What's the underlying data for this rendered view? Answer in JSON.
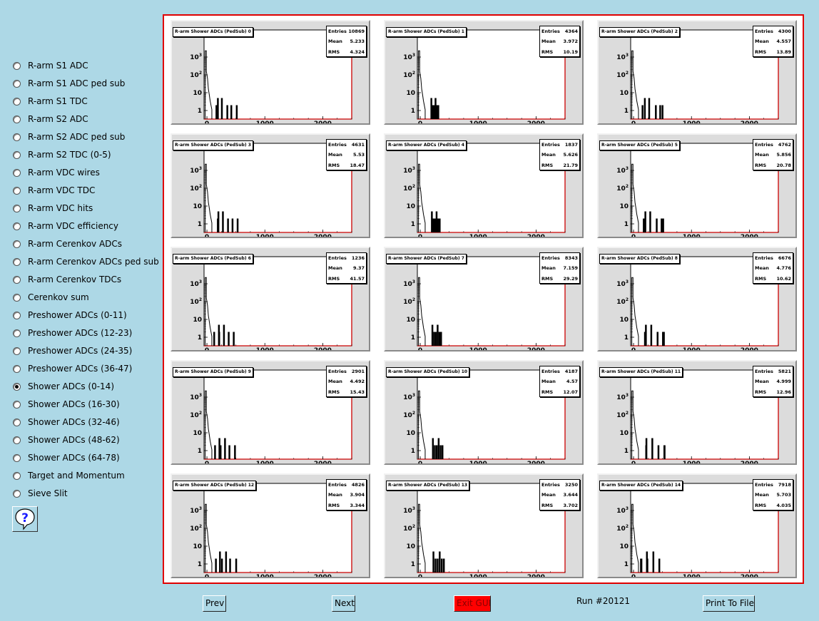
{
  "sidebar": {
    "items": [
      {
        "label": "R-arm S1 ADC",
        "checked": false
      },
      {
        "label": "R-arm S1 ADC ped sub",
        "checked": false
      },
      {
        "label": "R-arm S1 TDC",
        "checked": false
      },
      {
        "label": "R-arm S2 ADC",
        "checked": false
      },
      {
        "label": "R-arm S2 ADC ped sub",
        "checked": false
      },
      {
        "label": "R-arm S2 TDC (0-5)",
        "checked": false
      },
      {
        "label": "R-arm VDC wires",
        "checked": false
      },
      {
        "label": "R-arm VDC TDC",
        "checked": false
      },
      {
        "label": "R-arm VDC hits",
        "checked": false
      },
      {
        "label": "R-arm VDC efficiency",
        "checked": false
      },
      {
        "label": "R-arm Cerenkov ADCs",
        "checked": false
      },
      {
        "label": "R-arm Cerenkov ADCs ped sub",
        "checked": false
      },
      {
        "label": "R-arm Cerenkov TDCs",
        "checked": false
      },
      {
        "label": "Cerenkov sum",
        "checked": false
      },
      {
        "label": "Preshower ADCs (0-11)",
        "checked": false
      },
      {
        "label": "Preshower ADCs (12-23)",
        "checked": false
      },
      {
        "label": "Preshower ADCs (24-35)",
        "checked": false
      },
      {
        "label": "Preshower ADCs (36-47)",
        "checked": false
      },
      {
        "label": "Shower ADCs (0-14)",
        "checked": true
      },
      {
        "label": "Shower ADCs (16-30)",
        "checked": false
      },
      {
        "label": "Shower ADCs (32-46)",
        "checked": false
      },
      {
        "label": "Shower ADCs (48-62)",
        "checked": false
      },
      {
        "label": "Shower ADCs (64-78)",
        "checked": false
      },
      {
        "label": "Target and Momentum",
        "checked": false
      },
      {
        "label": "Sieve Slit",
        "checked": false
      }
    ],
    "help_icon": "question-mark-speech-bubble-icon"
  },
  "pads": [
    {
      "title": "R-arm Shower ADCs (PedSub) 0",
      "entries": "10869",
      "mean": "5.233",
      "rms": "4.324"
    },
    {
      "title": "R-arm Shower ADCs (PedSub) 1",
      "entries": "4364",
      "mean": "3.972",
      "rms": "10.19"
    },
    {
      "title": "R-arm Shower ADCs (PedSub) 2",
      "entries": "4300",
      "mean": "4.557",
      "rms": "13.89"
    },
    {
      "title": "R-arm Shower ADCs (PedSub) 3",
      "entries": "4631",
      "mean": "5.53",
      "rms": "18.47"
    },
    {
      "title": "R-arm Shower ADCs (PedSub) 4",
      "entries": "1837",
      "mean": "5.626",
      "rms": "21.79"
    },
    {
      "title": "R-arm Shower ADCs (PedSub) 5",
      "entries": "4762",
      "mean": "5.856",
      "rms": "20.78"
    },
    {
      "title": "R-arm Shower ADCs (PedSub) 6",
      "entries": "1236",
      "mean": "9.37",
      "rms": "41.57"
    },
    {
      "title": "R-arm Shower ADCs (PedSub) 7",
      "entries": "8343",
      "mean": "7.159",
      "rms": "29.29"
    },
    {
      "title": "R-arm Shower ADCs (PedSub) 8",
      "entries": "6676",
      "mean": "4.776",
      "rms": "10.62"
    },
    {
      "title": "R-arm Shower ADCs (PedSub) 9",
      "entries": "2901",
      "mean": "4.492",
      "rms": "15.43"
    },
    {
      "title": "R-arm Shower ADCs (PedSub) 10",
      "entries": "4187",
      "mean": "4.57",
      "rms": "12.07"
    },
    {
      "title": "R-arm Shower ADCs (PedSub) 11",
      "entries": "5821",
      "mean": "4.999",
      "rms": "12.96"
    },
    {
      "title": "R-arm Shower ADCs (PedSub) 12",
      "entries": "4826",
      "mean": "3.904",
      "rms": "3.344"
    },
    {
      "title": "R-arm Shower ADCs (PedSub) 13",
      "entries": "3250",
      "mean": "3.644",
      "rms": "3.702"
    },
    {
      "title": "R-arm Shower ADCs (PedSub) 14",
      "entries": "7918",
      "mean": "5.703",
      "rms": "4.035"
    }
  ],
  "stats_labels": {
    "entries": "Entries",
    "mean": "Mean",
    "rms": "RMS"
  },
  "chart_data": {
    "type": "histogram",
    "title": "R-arm Shower ADCs (PedSub) 0-14",
    "x_tick_labels": [
      "0",
      "1000",
      "2000"
    ],
    "y_tick_labels": [
      "1",
      "10",
      "10^2",
      "10^3"
    ],
    "xlim": [
      -50,
      2500
    ],
    "ylog": true,
    "line_color": "#000000",
    "frame_color": "#cc0000"
  },
  "bottom_bar": {
    "prev_label": "Prev",
    "next_label": "Next",
    "exit_label": "Exit GUI",
    "run_label": "Run #20121",
    "print_label": "Print To File"
  }
}
